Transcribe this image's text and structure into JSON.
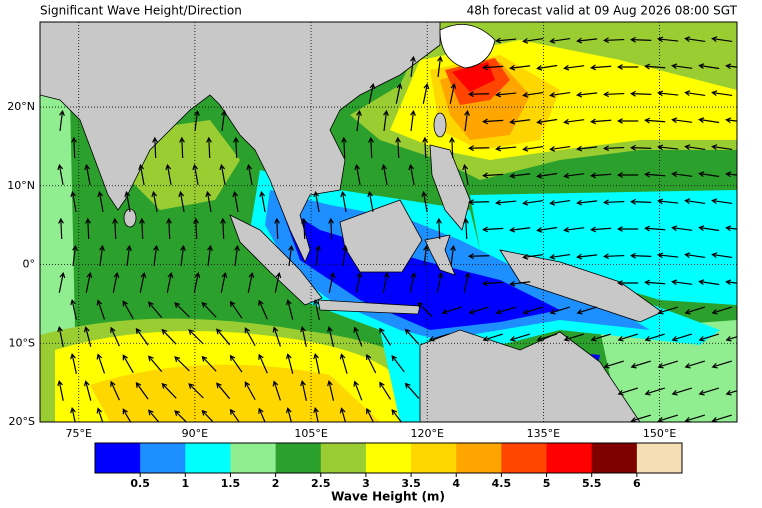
{
  "header": {
    "title": "Significant Wave Height/Direction",
    "valid": "48h forecast valid at 09 Aug 2026 08:00 SGT"
  },
  "map": {
    "lon_range": [
      70,
      160
    ],
    "lat_range": [
      -20,
      30.8
    ],
    "lon_ticks": [
      {
        "value": 75,
        "label": "75°E"
      },
      {
        "value": 90,
        "label": "90°E"
      },
      {
        "value": 105,
        "label": "105°E"
      },
      {
        "value": 120,
        "label": "120°E"
      },
      {
        "value": 135,
        "label": "135°E"
      },
      {
        "value": 150,
        "label": "150°E"
      }
    ],
    "lat_ticks": [
      {
        "value": 20,
        "label": "20°N"
      },
      {
        "value": 10,
        "label": "10°N"
      },
      {
        "value": 0,
        "label": "0°"
      },
      {
        "value": -10,
        "label": "10°S"
      },
      {
        "value": -20,
        "label": "20°S"
      }
    ]
  },
  "colorbar": {
    "label": "Wave Height (m)",
    "colors": [
      "#0000ff",
      "#1e8fff",
      "#00ffff",
      "#90ee90",
      "#2ca02c",
      "#9acd32",
      "#ffff00",
      "#ffd700",
      "#ffa500",
      "#ff4500",
      "#ff0000",
      "#800000",
      "#f5deb3"
    ],
    "ticks": [
      0.5,
      1,
      1.5,
      2,
      2.5,
      3,
      3.5,
      4,
      4.5,
      5,
      5.5,
      6
    ]
  }
}
